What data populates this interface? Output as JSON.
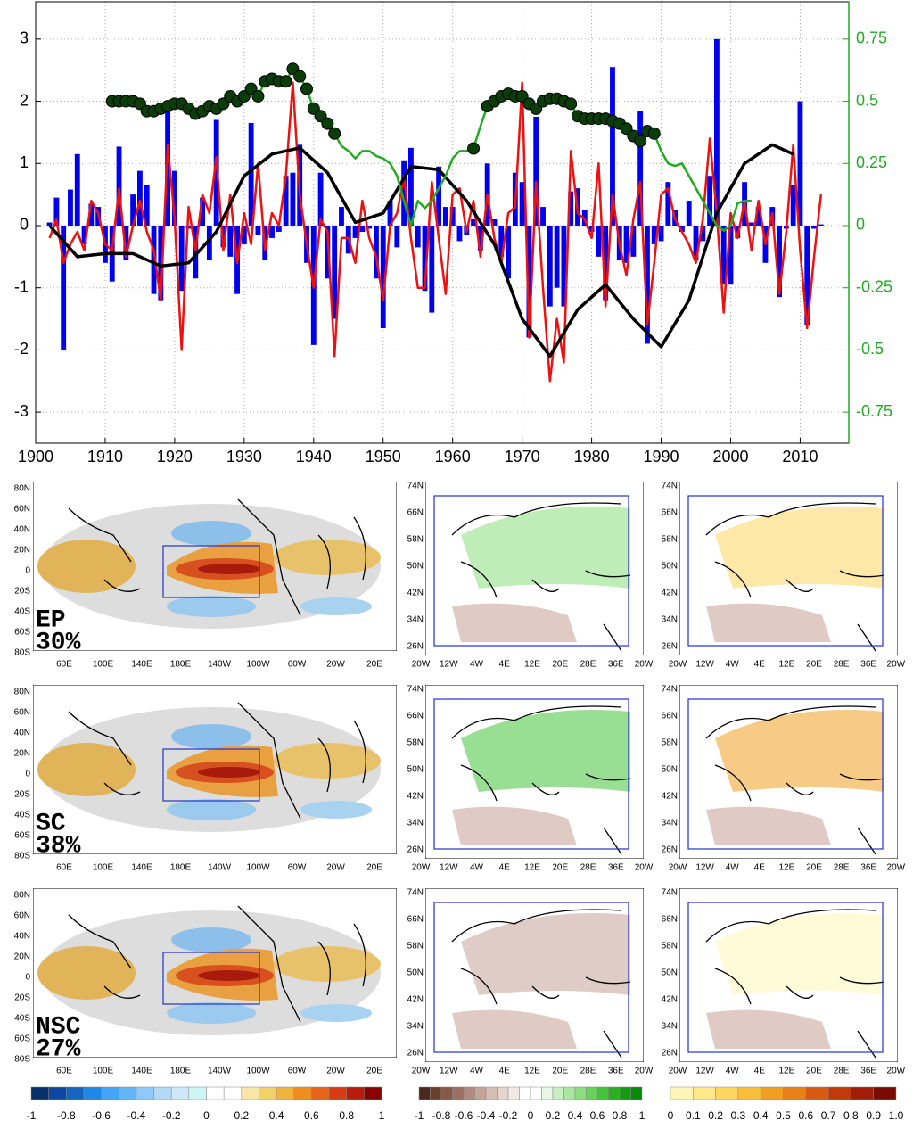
{
  "chart_data": {
    "type": "combo",
    "xlim": [
      1900,
      2017
    ],
    "xticks": [
      1900,
      1910,
      1920,
      1930,
      1940,
      1950,
      1960,
      1970,
      1980,
      1990,
      2000,
      2010
    ],
    "ylim": [
      -3.5,
      3.6
    ],
    "yticks": [
      -3,
      -2,
      -1,
      0,
      1,
      2,
      3
    ],
    "y2lim": [
      -0.875,
      0.9
    ],
    "y2ticks": [
      -0.75,
      -0.5,
      -0.25,
      0,
      0.25,
      0.5,
      0.75
    ],
    "y2color": "#22aa22",
    "grid": true,
    "x": [
      1902,
      1903,
      1904,
      1905,
      1906,
      1907,
      1908,
      1909,
      1910,
      1911,
      1912,
      1913,
      1914,
      1915,
      1916,
      1917,
      1918,
      1919,
      1920,
      1921,
      1922,
      1923,
      1924,
      1925,
      1926,
      1927,
      1928,
      1929,
      1930,
      1931,
      1932,
      1933,
      1934,
      1935,
      1936,
      1937,
      1938,
      1939,
      1940,
      1941,
      1942,
      1943,
      1944,
      1945,
      1946,
      1947,
      1948,
      1949,
      1950,
      1951,
      1952,
      1953,
      1954,
      1955,
      1956,
      1957,
      1958,
      1959,
      1960,
      1961,
      1962,
      1963,
      1964,
      1965,
      1966,
      1967,
      1968,
      1969,
      1970,
      1971,
      1972,
      1973,
      1974,
      1975,
      1976,
      1977,
      1978,
      1979,
      1980,
      1981,
      1982,
      1983,
      1984,
      1985,
      1986,
      1987,
      1988,
      1989,
      1990,
      1991,
      1992,
      1993,
      1994,
      1995,
      1996,
      1997,
      1998,
      1999,
      2000,
      2001,
      2002,
      2003,
      2004,
      2005,
      2006,
      2007,
      2008,
      2009,
      2010,
      2011,
      2012,
      2013
    ],
    "series": [
      {
        "type": "bar",
        "color": "#0000ee",
        "values": [
          0.05,
          0.45,
          -2.0,
          0.58,
          1.15,
          -0.3,
          0.35,
          0.3,
          -0.6,
          -0.9,
          1.27,
          -0.55,
          0.5,
          0.88,
          0.65,
          -1.1,
          -1.2,
          1.85,
          0.88,
          -1.05,
          -0.05,
          -0.85,
          0.45,
          -0.55,
          1.7,
          -0.35,
          -0.5,
          -1.1,
          -0.3,
          1.65,
          -0.15,
          -0.55,
          -0.2,
          -0.1,
          0.8,
          0.85,
          1.3,
          -0.6,
          -1.92,
          0.85,
          -0.85,
          -1.5,
          0.3,
          -0.45,
          -0.2,
          -0.1,
          -0.05,
          -0.85,
          -1.65,
          0.4,
          -0.35,
          1.05,
          1.25,
          -0.35,
          -1.05,
          -1.4,
          0.95,
          0.3,
          0.3,
          -0.25,
          -0.15,
          0.1,
          -0.4,
          1.0,
          0.1,
          -0.5,
          -0.85,
          0.85,
          0.7,
          -1.8,
          1.75,
          0.3,
          -1.3,
          -1.0,
          -1.3,
          0.55,
          0.6,
          0.25,
          -0.1,
          -0.5,
          -1.2,
          2.55,
          -0.55,
          -0.6,
          -0.5,
          1.85,
          -1.9,
          -0.3,
          -0.25,
          0.7,
          0.25,
          -0.1,
          0.4,
          -0.55,
          -0.25,
          0.8,
          3.0,
          -0.95,
          -0.95,
          -0.2,
          0.7,
          0.05,
          0.3,
          -0.6,
          0.3,
          -1.15,
          -0.05,
          0.65,
          2.0,
          -1.6,
          -0.05,
          0.02
        ]
      },
      {
        "type": "line",
        "color": "#ee1111",
        "values": [
          -0.2,
          0.1,
          -0.6,
          -0.3,
          -0.1,
          -0.4,
          0.4,
          0.2,
          -0.3,
          -0.4,
          0.6,
          -0.5,
          0.0,
          0.4,
          -0.1,
          -0.4,
          -1.2,
          1.3,
          0.1,
          -2.0,
          0.3,
          -0.4,
          0.5,
          0.2,
          1.1,
          -0.4,
          0.5,
          -0.6,
          0.2,
          -0.3,
          1.0,
          -0.4,
          0.2,
          0.0,
          0.8,
          2.3,
          0.5,
          -0.3,
          -1.0,
          0.1,
          -0.1,
          -2.1,
          -0.2,
          -0.2,
          -0.6,
          0.4,
          -0.2,
          -0.5,
          -1.2,
          0.0,
          0.2,
          0.8,
          -0.2,
          -1.0,
          -1.0,
          0.7,
          -0.2,
          -1.1,
          0.5,
          0.6,
          -0.1,
          0.4,
          -0.5,
          0.5,
          -0.2,
          -0.6,
          0.2,
          0.3,
          2.3,
          -1.8,
          0.7,
          -1.0,
          -2.5,
          -1.5,
          -2.2,
          1.2,
          0.2,
          0.1,
          -0.2,
          1.0,
          -1.3,
          0.5,
          -0.3,
          -0.8,
          0.1,
          0.7,
          -1.6,
          -0.6,
          0.5,
          0.6,
          0.1,
          -0.1,
          -0.3,
          -0.6,
          0.1,
          1.4,
          0.2,
          -1.4,
          0.2,
          -0.2,
          0.4,
          -0.4,
          0.4,
          -0.3,
          0.2,
          -1.1,
          -0.1,
          1.3,
          -0.4,
          -1.65,
          -0.5,
          0.5
        ]
      },
      {
        "type": "line",
        "color": "#000000",
        "x": [
          1902,
          1906,
          1910,
          1914,
          1918,
          1922,
          1926,
          1930,
          1934,
          1938,
          1942,
          1946,
          1950,
          1954,
          1958,
          1962,
          1966,
          1970,
          1974,
          1978,
          1982,
          1986,
          1990,
          1994,
          1998,
          2002,
          2006,
          2009
        ],
        "values": [
          0,
          -0.5,
          -0.45,
          -0.45,
          -0.65,
          -0.6,
          -0.1,
          0.8,
          1.15,
          1.25,
          0.85,
          0.05,
          0.2,
          0.95,
          0.9,
          0.4,
          -0.3,
          -1.5,
          -2.1,
          -1.35,
          -0.95,
          -1.5,
          -1.95,
          -1.2,
          0.2,
          1.0,
          1.3,
          1.15
        ]
      },
      {
        "type": "line",
        "color": "#22aa22",
        "axis": "y2",
        "marker_color": "#0b3d0b",
        "x": [
          1911,
          1912,
          1913,
          1914,
          1915,
          1916,
          1917,
          1918,
          1919,
          1920,
          1921,
          1922,
          1923,
          1924,
          1925,
          1926,
          1927,
          1928,
          1929,
          1930,
          1931,
          1932,
          1933,
          1934,
          1935,
          1936,
          1937,
          1938,
          1939,
          1940,
          1941,
          1942,
          1943,
          1944,
          1945,
          1946,
          1947,
          1948,
          1949,
          1950,
          1951,
          1952,
          1953,
          1954,
          1955,
          1956,
          1957,
          1958,
          1959,
          1960,
          1961,
          1962,
          1963,
          1964,
          1965,
          1966,
          1967,
          1968,
          1969,
          1970,
          1971,
          1972,
          1973,
          1974,
          1975,
          1976,
          1977,
          1978,
          1979,
          1980,
          1981,
          1982,
          1983,
          1984,
          1985,
          1986,
          1987,
          1988,
          1989,
          1990,
          1991,
          1992,
          1993,
          1994,
          1995,
          1996,
          1997,
          1998,
          1999,
          2000,
          2001,
          2002,
          2003
        ],
        "values": [
          0.5,
          0.5,
          0.5,
          0.5,
          0.49,
          0.46,
          0.46,
          0.47,
          0.48,
          0.49,
          0.49,
          0.47,
          0.45,
          0.46,
          0.48,
          0.47,
          0.49,
          0.52,
          0.5,
          0.52,
          0.55,
          0.52,
          0.58,
          0.59,
          0.58,
          0.58,
          0.63,
          0.6,
          0.55,
          0.47,
          0.44,
          0.41,
          0.37,
          0.32,
          0.3,
          0.27,
          0.3,
          0.3,
          0.28,
          0.27,
          0.25,
          0.2,
          0.1,
          0.0,
          0.1,
          0.07,
          0.1,
          0.15,
          0.2,
          0.27,
          0.3,
          0.3,
          0.31,
          0.4,
          0.48,
          0.5,
          0.52,
          0.53,
          0.52,
          0.52,
          0.49,
          0.47,
          0.5,
          0.51,
          0.51,
          0.5,
          0.49,
          0.44,
          0.43,
          0.43,
          0.43,
          0.43,
          0.42,
          0.41,
          0.39,
          0.36,
          0.34,
          0.38,
          0.37,
          0.3,
          0.25,
          0.24,
          0.25,
          0.2,
          0.15,
          0.1,
          0.05,
          0.0,
          -0.02,
          0.0,
          0.09,
          0.1,
          0.1
        ],
        "marked": [
          true,
          true,
          true,
          true,
          true,
          true,
          true,
          true,
          true,
          true,
          true,
          true,
          true,
          true,
          true,
          true,
          true,
          true,
          true,
          true,
          true,
          true,
          true,
          true,
          true,
          true,
          true,
          true,
          true,
          true,
          true,
          true,
          true,
          false,
          false,
          false,
          false,
          false,
          false,
          false,
          false,
          false,
          false,
          false,
          false,
          false,
          false,
          false,
          false,
          false,
          false,
          false,
          true,
          false,
          true,
          true,
          true,
          true,
          true,
          true,
          true,
          true,
          true,
          true,
          true,
          true,
          true,
          true,
          true,
          true,
          true,
          true,
          true,
          true,
          true,
          true,
          true,
          true,
          true,
          false,
          false,
          false,
          false,
          false,
          false,
          false,
          false,
          false,
          false,
          false,
          false,
          false,
          false
        ]
      }
    ]
  },
  "maps": {
    "global_lat": [
      "80N",
      "60N",
      "40N",
      "20N",
      "0",
      "20S",
      "40S",
      "60S",
      "80S"
    ],
    "global_lon": [
      "60E",
      "100E",
      "140E",
      "180E",
      "140W",
      "100W",
      "60W",
      "20W",
      "20E"
    ],
    "europe_lat": [
      "74N",
      "66N",
      "58N",
      "50N",
      "42N",
      "34N",
      "26N"
    ],
    "europe_lon": [
      "20W",
      "12W",
      "4W",
      "4E",
      "12E",
      "20E",
      "28E",
      "36E",
      "20W"
    ],
    "panels": [
      {
        "label": "EP",
        "percent": "30%"
      },
      {
        "label": "SC",
        "percent": "38%"
      },
      {
        "label": "NSC",
        "percent": "27%"
      }
    ]
  },
  "colorbars": [
    {
      "ticks": [
        -1,
        -0.8,
        -0.6,
        -0.4,
        -0.2,
        0,
        0.2,
        0.4,
        0.6,
        0.8,
        1
      ],
      "colors": [
        "#08306b",
        "#0d47a1",
        "#1565c0",
        "#1e88e5",
        "#42a5f5",
        "#64b5f6",
        "#90caf9",
        "#b3d9f7",
        "#cfe8f7",
        "#ccf5f5",
        "#ffffff",
        "#ffffff",
        "#f7e6a6",
        "#f2d16b",
        "#f0b43c",
        "#ee8e1e",
        "#e8641a",
        "#d83b14",
        "#b71c0c",
        "#8b0000"
      ]
    },
    {
      "ticks": [
        -1,
        -0.8,
        -0.6,
        -0.4,
        -0.2,
        0,
        0.2,
        0.4,
        0.6,
        0.8,
        1
      ],
      "colors": [
        "#4a2a1e",
        "#6b3f2e",
        "#85584a",
        "#9c7062",
        "#b08b7e",
        "#c4a398",
        "#d6beb5",
        "#e6d5cf",
        "#f2e9e6",
        "#ffffff",
        "#ffffff",
        "#e6f7e3",
        "#c8efc2",
        "#a9e6a0",
        "#8ade7e",
        "#66d35a",
        "#44c43a",
        "#2ab022",
        "#159a12",
        "#0a8a0a"
      ]
    },
    {
      "ticks": [
        0,
        0.1,
        0.2,
        0.3,
        0.4,
        0.5,
        0.6,
        0.7,
        0.8,
        0.9,
        {
          "value": 1,
          "label": "1.0"
        }
      ],
      "colors": [
        "#fff5b8",
        "#ffe88a",
        "#fdd65e",
        "#f8c03a",
        "#f0a020",
        "#e8801a",
        "#d85a12",
        "#c03a0c",
        "#a01e08",
        "#7a0a04"
      ]
    }
  ]
}
